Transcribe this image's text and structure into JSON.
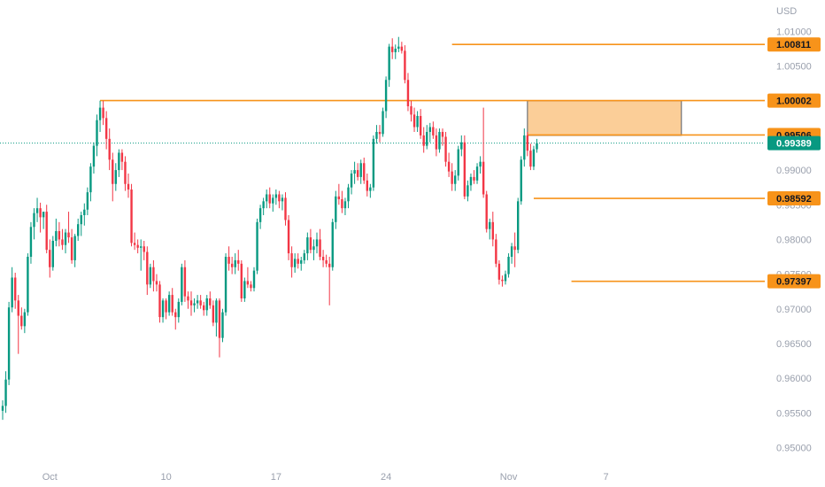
{
  "chart_data": {
    "type": "candlestick",
    "currency": "USD",
    "y_ticks": [
      "1.01000",
      "1.00500",
      "1.00000",
      "0.99500",
      "0.99000",
      "0.98500",
      "0.98000",
      "0.97500",
      "0.97000",
      "0.96500",
      "0.96000",
      "0.95500",
      "0.95000"
    ],
    "ylim": [
      0.9475,
      1.0135
    ],
    "x_ticks": [
      {
        "label": "Oct",
        "index": 15
      },
      {
        "label": "10",
        "index": 52
      },
      {
        "label": "17",
        "index": 87
      },
      {
        "label": "24",
        "index": 122
      },
      {
        "label": "Nov",
        "index": 161
      },
      {
        "label": "7",
        "index": 192
      }
    ],
    "current_price": "0.99389",
    "levels": [
      {
        "price": "1.00811",
        "from_index": 143
      },
      {
        "price": "1.00002",
        "from_index": 31
      },
      {
        "price": "0.99506",
        "from_index": 167
      },
      {
        "price": "0.98592",
        "from_index": 169
      },
      {
        "price": "0.97397",
        "from_index": 181
      }
    ],
    "zone": {
      "top": 1.0,
      "bottom": 0.995,
      "from_index": 167,
      "to_index": 216
    },
    "candles": [
      [
        0.9553,
        0.9568,
        0.954,
        0.956
      ],
      [
        0.956,
        0.961,
        0.955,
        0.9598
      ],
      [
        0.9598,
        0.971,
        0.959,
        0.9702
      ],
      [
        0.9702,
        0.976,
        0.9695,
        0.9745
      ],
      [
        0.9745,
        0.9752,
        0.97,
        0.9712
      ],
      [
        0.9712,
        0.972,
        0.9635,
        0.969
      ],
      [
        0.969,
        0.9702,
        0.967,
        0.9675
      ],
      [
        0.9675,
        0.97,
        0.9665,
        0.9695
      ],
      [
        0.9695,
        0.978,
        0.969,
        0.9775
      ],
      [
        0.9775,
        0.9825,
        0.9765,
        0.9818
      ],
      [
        0.9818,
        0.9845,
        0.98,
        0.9838
      ],
      [
        0.9838,
        0.986,
        0.9825,
        0.9845
      ],
      [
        0.9845,
        0.9853,
        0.981,
        0.9832
      ],
      [
        0.9832,
        0.984,
        0.9815,
        0.984
      ],
      [
        0.984,
        0.985,
        0.978,
        0.9785
      ],
      [
        0.9785,
        0.98,
        0.9745,
        0.976
      ],
      [
        0.976,
        0.9805,
        0.9755,
        0.9798
      ],
      [
        0.9798,
        0.983,
        0.979,
        0.9812
      ],
      [
        0.9812,
        0.9825,
        0.979,
        0.98
      ],
      [
        0.98,
        0.9815,
        0.9785,
        0.9792
      ],
      [
        0.9792,
        0.9815,
        0.978,
        0.981
      ],
      [
        0.981,
        0.984,
        0.9795,
        0.9803
      ],
      [
        0.9803,
        0.9815,
        0.9765,
        0.977
      ],
      [
        0.977,
        0.9808,
        0.976,
        0.9805
      ],
      [
        0.9805,
        0.983,
        0.9798,
        0.9822
      ],
      [
        0.9822,
        0.984,
        0.9805,
        0.9835
      ],
      [
        0.9835,
        0.9852,
        0.982,
        0.9843
      ],
      [
        0.9843,
        0.9875,
        0.9835,
        0.9868
      ],
      [
        0.9868,
        0.991,
        0.9855,
        0.9905
      ],
      [
        0.9905,
        0.994,
        0.9895,
        0.9935
      ],
      [
        0.9935,
        0.998,
        0.992,
        0.9972
      ],
      [
        0.9972,
        1.0,
        0.9955,
        0.999
      ],
      [
        0.999,
        1.0,
        0.9965,
        0.9975
      ],
      [
        0.9975,
        0.9985,
        0.993,
        0.9945
      ],
      [
        0.9945,
        0.996,
        0.99,
        0.9915
      ],
      [
        0.9915,
        0.9925,
        0.9855,
        0.988
      ],
      [
        0.988,
        0.991,
        0.987,
        0.99
      ],
      [
        0.99,
        0.993,
        0.989,
        0.9925
      ],
      [
        0.9925,
        0.993,
        0.99,
        0.9912
      ],
      [
        0.9912,
        0.992,
        0.987,
        0.988
      ],
      [
        0.988,
        0.9895,
        0.986,
        0.9872
      ],
      [
        0.9872,
        0.988,
        0.979,
        0.9795
      ],
      [
        0.9795,
        0.981,
        0.9785,
        0.9792
      ],
      [
        0.9792,
        0.98,
        0.978,
        0.9788
      ],
      [
        0.9788,
        0.98,
        0.9755,
        0.979
      ],
      [
        0.979,
        0.9798,
        0.977,
        0.9782
      ],
      [
        0.9782,
        0.979,
        0.972,
        0.9735
      ],
      [
        0.9735,
        0.9765,
        0.973,
        0.976
      ],
      [
        0.976,
        0.977,
        0.9725,
        0.974
      ],
      [
        0.974,
        0.975,
        0.9725,
        0.9735
      ],
      [
        0.9735,
        0.974,
        0.968,
        0.9688
      ],
      [
        0.9688,
        0.9715,
        0.968,
        0.9712
      ],
      [
        0.9712,
        0.9715,
        0.9685,
        0.9695
      ],
      [
        0.9695,
        0.9725,
        0.969,
        0.972
      ],
      [
        0.972,
        0.973,
        0.969,
        0.9695
      ],
      [
        0.9695,
        0.97,
        0.967,
        0.9688
      ],
      [
        0.9688,
        0.9715,
        0.968,
        0.971
      ],
      [
        0.971,
        0.9765,
        0.9705,
        0.976
      ],
      [
        0.976,
        0.977,
        0.971,
        0.9718
      ],
      [
        0.9718,
        0.9725,
        0.97,
        0.9712
      ],
      [
        0.9712,
        0.9725,
        0.969,
        0.9705
      ],
      [
        0.9705,
        0.9715,
        0.9695,
        0.9708
      ],
      [
        0.9708,
        0.972,
        0.97,
        0.9712
      ],
      [
        0.9712,
        0.972,
        0.97,
        0.9705
      ],
      [
        0.9705,
        0.971,
        0.969,
        0.9698
      ],
      [
        0.9698,
        0.972,
        0.969,
        0.9715
      ],
      [
        0.9715,
        0.9725,
        0.97,
        0.9705
      ],
      [
        0.9705,
        0.9712,
        0.9675,
        0.968
      ],
      [
        0.968,
        0.9715,
        0.966,
        0.9712
      ],
      [
        0.9712,
        0.9715,
        0.963,
        0.9658
      ],
      [
        0.9658,
        0.97,
        0.9652,
        0.9695
      ],
      [
        0.9695,
        0.978,
        0.969,
        0.9775
      ],
      [
        0.9775,
        0.979,
        0.9755,
        0.9765
      ],
      [
        0.9765,
        0.9775,
        0.975,
        0.976
      ],
      [
        0.976,
        0.978,
        0.975,
        0.977
      ],
      [
        0.977,
        0.9785,
        0.9755,
        0.9765
      ],
      [
        0.9765,
        0.977,
        0.971,
        0.9715
      ],
      [
        0.9715,
        0.9745,
        0.971,
        0.974
      ],
      [
        0.974,
        0.976,
        0.973,
        0.9735
      ],
      [
        0.9735,
        0.974,
        0.9725,
        0.973
      ],
      [
        0.973,
        0.976,
        0.9725,
        0.9755
      ],
      [
        0.9755,
        0.983,
        0.975,
        0.9825
      ],
      [
        0.9825,
        0.985,
        0.9815,
        0.9845
      ],
      [
        0.9845,
        0.986,
        0.9835,
        0.9855
      ],
      [
        0.9855,
        0.9872,
        0.9845,
        0.9865
      ],
      [
        0.9865,
        0.9875,
        0.9845,
        0.9852
      ],
      [
        0.9852,
        0.9865,
        0.984,
        0.986
      ],
      [
        0.986,
        0.9872,
        0.985,
        0.9865
      ],
      [
        0.9865,
        0.987,
        0.9845,
        0.9855
      ],
      [
        0.9855,
        0.9865,
        0.9842,
        0.986
      ],
      [
        0.986,
        0.9868,
        0.982,
        0.9828
      ],
      [
        0.9828,
        0.9835,
        0.977,
        0.978
      ],
      [
        0.978,
        0.979,
        0.9745,
        0.976
      ],
      [
        0.976,
        0.978,
        0.9752,
        0.9772
      ],
      [
        0.9772,
        0.978,
        0.9758,
        0.9765
      ],
      [
        0.9765,
        0.9775,
        0.9755,
        0.977
      ],
      [
        0.977,
        0.9785,
        0.9765,
        0.978
      ],
      [
        0.978,
        0.981,
        0.977,
        0.9803
      ],
      [
        0.9803,
        0.9815,
        0.978,
        0.9785
      ],
      [
        0.9785,
        0.98,
        0.977,
        0.979
      ],
      [
        0.979,
        0.981,
        0.978,
        0.98
      ],
      [
        0.98,
        0.9815,
        0.977,
        0.9775
      ],
      [
        0.9775,
        0.9785,
        0.976,
        0.977
      ],
      [
        0.977,
        0.9778,
        0.976,
        0.9765
      ],
      [
        0.9765,
        0.9775,
        0.9705,
        0.976
      ],
      [
        0.976,
        0.983,
        0.9755,
        0.9825
      ],
      [
        0.9825,
        0.987,
        0.9815,
        0.9862
      ],
      [
        0.9862,
        0.988,
        0.985,
        0.9858
      ],
      [
        0.9858,
        0.987,
        0.9838,
        0.9845
      ],
      [
        0.9845,
        0.986,
        0.9835,
        0.9855
      ],
      [
        0.9855,
        0.988,
        0.9845,
        0.9875
      ],
      [
        0.9875,
        0.99,
        0.9865,
        0.9895
      ],
      [
        0.9895,
        0.9912,
        0.988,
        0.99
      ],
      [
        0.99,
        0.991,
        0.9885,
        0.989
      ],
      [
        0.989,
        0.9915,
        0.988,
        0.991
      ],
      [
        0.991,
        0.9918,
        0.988,
        0.9885
      ],
      [
        0.9885,
        0.9895,
        0.9862,
        0.987
      ],
      [
        0.987,
        0.988,
        0.986,
        0.9875
      ],
      [
        0.9875,
        0.995,
        0.987,
        0.9945
      ],
      [
        0.9945,
        0.9965,
        0.9938,
        0.9955
      ],
      [
        0.9955,
        0.9965,
        0.994,
        0.9952
      ],
      [
        0.9952,
        0.999,
        0.9948,
        0.9985
      ],
      [
        0.9985,
        1.0035,
        0.9975,
        1.003
      ],
      [
        1.003,
        1.0082,
        1.002,
        1.0078
      ],
      [
        1.0078,
        1.009,
        1.006,
        1.007
      ],
      [
        1.007,
        1.0081,
        1.006,
        1.0075
      ],
      [
        1.0075,
        1.0092,
        1.007,
        1.0078
      ],
      [
        1.0078,
        1.0085,
        1.0068,
        1.0072
      ],
      [
        1.0072,
        1.008,
        1.0025,
        1.003
      ],
      [
        1.003,
        1.004,
        0.9985,
        0.9992
      ],
      [
        0.9992,
        1.0,
        0.997,
        0.998
      ],
      [
        0.998,
        0.999,
        0.9955,
        0.9962
      ],
      [
        0.9962,
        0.9985,
        0.9955,
        0.9978
      ],
      [
        0.9978,
        0.9988,
        0.9945,
        0.995
      ],
      [
        0.995,
        0.9962,
        0.9925,
        0.9935
      ],
      [
        0.9935,
        0.9965,
        0.993,
        0.9955
      ],
      [
        0.9955,
        0.9968,
        0.994,
        0.9962
      ],
      [
        0.9962,
        0.997,
        0.9945,
        0.995
      ],
      [
        0.995,
        0.996,
        0.992,
        0.993
      ],
      [
        0.993,
        0.996,
        0.9925,
        0.9955
      ],
      [
        0.9955,
        0.996,
        0.9935,
        0.9948
      ],
      [
        0.9948,
        0.9955,
        0.9905,
        0.9912
      ],
      [
        0.9912,
        0.9925,
        0.989,
        0.9898
      ],
      [
        0.9898,
        0.991,
        0.987,
        0.988
      ],
      [
        0.988,
        0.99,
        0.987,
        0.9892
      ],
      [
        0.9892,
        0.9935,
        0.9885,
        0.993
      ],
      [
        0.993,
        0.995,
        0.992,
        0.994
      ],
      [
        0.994,
        0.995,
        0.9858,
        0.9862
      ],
      [
        0.9862,
        0.9885,
        0.9855,
        0.9878
      ],
      [
        0.9878,
        0.9895,
        0.987,
        0.989
      ],
      [
        0.989,
        0.99,
        0.988,
        0.9885
      ],
      [
        0.9885,
        0.991,
        0.988,
        0.9905
      ],
      [
        0.9905,
        0.992,
        0.9895,
        0.9912
      ],
      [
        0.9912,
        0.999,
        0.986,
        0.9865
      ],
      [
        0.9865,
        0.987,
        0.981,
        0.9815
      ],
      [
        0.9815,
        0.983,
        0.98,
        0.9825
      ],
      [
        0.9825,
        0.984,
        0.979,
        0.98
      ],
      [
        0.98,
        0.9808,
        0.976,
        0.9765
      ],
      [
        0.9765,
        0.977,
        0.9735,
        0.9742
      ],
      [
        0.9742,
        0.9748,
        0.9732,
        0.974
      ],
      [
        0.974,
        0.9755,
        0.9735,
        0.975
      ],
      [
        0.975,
        0.978,
        0.9745,
        0.9775
      ],
      [
        0.9775,
        0.9795,
        0.9765,
        0.979
      ],
      [
        0.979,
        0.981,
        0.976,
        0.9785
      ],
      [
        0.9785,
        0.986,
        0.978,
        0.9855
      ],
      [
        0.9855,
        0.992,
        0.985,
        0.9915
      ],
      [
        0.9915,
        0.996,
        0.9905,
        0.995
      ],
      [
        0.995,
        0.9955,
        0.992,
        0.9928
      ],
      [
        0.9928,
        0.9938,
        0.99,
        0.9905
      ],
      [
        0.9905,
        0.9935,
        0.99,
        0.993
      ],
      [
        0.993,
        0.9945,
        0.9925,
        0.99389
      ]
    ]
  }
}
